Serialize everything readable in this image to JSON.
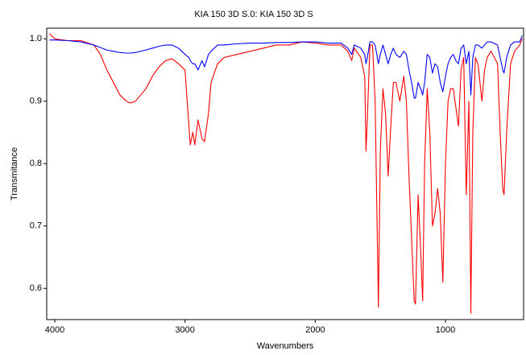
{
  "chart_data": {
    "type": "line",
    "title": "KIA 150 3D S.0: KIA 150 3D S",
    "x_label": "Wavenumbers",
    "y_label": "Transmitance",
    "x": [
      4040,
      4000,
      3900,
      3800,
      3700,
      3650,
      3600,
      3550,
      3500,
      3450,
      3420,
      3380,
      3300,
      3250,
      3200,
      3150,
      3100,
      3050,
      3000,
      2970,
      2960,
      2940,
      2925,
      2900,
      2870,
      2850,
      2820,
      2800,
      2750,
      2700,
      2600,
      2500,
      2400,
      2300,
      2200,
      2100,
      2000,
      1900,
      1800,
      1750,
      1720,
      1700,
      1650,
      1620,
      1610,
      1600,
      1580,
      1560,
      1540,
      1515,
      1500,
      1480,
      1460,
      1440,
      1420,
      1400,
      1380,
      1350,
      1320,
      1300,
      1280,
      1260,
      1240,
      1230,
      1210,
      1190,
      1175,
      1160,
      1140,
      1120,
      1100,
      1080,
      1060,
      1040,
      1020,
      1000,
      980,
      960,
      940,
      920,
      900,
      880,
      860,
      840,
      820,
      805,
      790,
      770,
      750,
      720,
      700,
      680,
      650,
      600,
      580,
      560,
      550,
      530,
      500,
      470,
      430,
      410
    ],
    "series": [
      {
        "color": "#ff0000",
        "values": [
          1.008,
          1.0,
          0.997,
          0.997,
          0.99,
          0.975,
          0.95,
          0.93,
          0.91,
          0.9,
          0.897,
          0.9,
          0.92,
          0.94,
          0.955,
          0.965,
          0.968,
          0.96,
          0.95,
          0.86,
          0.83,
          0.85,
          0.83,
          0.87,
          0.84,
          0.835,
          0.88,
          0.93,
          0.96,
          0.97,
          0.975,
          0.98,
          0.985,
          0.99,
          0.99,
          0.995,
          0.993,
          0.99,
          0.99,
          0.98,
          0.965,
          0.985,
          0.97,
          0.94,
          0.82,
          0.87,
          0.99,
          0.99,
          0.9,
          0.57,
          0.82,
          0.92,
          0.88,
          0.78,
          0.86,
          0.93,
          0.93,
          0.9,
          0.94,
          0.9,
          0.78,
          0.68,
          0.58,
          0.575,
          0.75,
          0.66,
          0.58,
          0.8,
          0.92,
          0.85,
          0.7,
          0.72,
          0.76,
          0.72,
          0.61,
          0.8,
          0.9,
          0.92,
          0.92,
          0.89,
          0.86,
          0.95,
          0.97,
          0.75,
          0.9,
          0.56,
          0.85,
          0.97,
          0.96,
          0.9,
          0.95,
          0.97,
          0.98,
          0.96,
          0.85,
          0.76,
          0.75,
          0.85,
          0.96,
          0.98,
          0.99,
          1.0
        ]
      },
      {
        "color": "#0000ff",
        "values": [
          0.998,
          0.998,
          0.997,
          0.995,
          0.99,
          0.986,
          0.982,
          0.98,
          0.978,
          0.977,
          0.977,
          0.978,
          0.982,
          0.985,
          0.988,
          0.99,
          0.99,
          0.985,
          0.975,
          0.97,
          0.965,
          0.96,
          0.96,
          0.95,
          0.965,
          0.955,
          0.975,
          0.98,
          0.99,
          0.99,
          0.992,
          0.993,
          0.993,
          0.994,
          0.994,
          0.995,
          0.995,
          0.993,
          0.993,
          0.985,
          0.975,
          0.99,
          0.985,
          0.975,
          0.96,
          0.97,
          0.995,
          0.995,
          0.99,
          0.96,
          0.975,
          0.99,
          0.975,
          0.96,
          0.975,
          0.985,
          0.975,
          0.97,
          0.98,
          0.975,
          0.95,
          0.93,
          0.905,
          0.905,
          0.93,
          0.92,
          0.91,
          0.93,
          0.975,
          0.97,
          0.945,
          0.96,
          0.955,
          0.93,
          0.915,
          0.94,
          0.96,
          0.97,
          0.975,
          0.965,
          0.96,
          0.985,
          0.99,
          0.96,
          0.98,
          0.91,
          0.97,
          0.99,
          0.99,
          0.985,
          0.99,
          0.995,
          0.995,
          0.99,
          0.97,
          0.95,
          0.945,
          0.97,
          0.99,
          0.995,
          0.995,
          1.005
        ]
      }
    ],
    "xlim": [
      4062,
      400
    ],
    "ylim": [
      0.55,
      1.017
    ],
    "xticks": [
      4000,
      3000,
      2000,
      1000
    ],
    "yticks": [
      0.6,
      0.7,
      0.8,
      0.9,
      {
        "value": 1,
        "label": "1.0"
      }
    ]
  }
}
